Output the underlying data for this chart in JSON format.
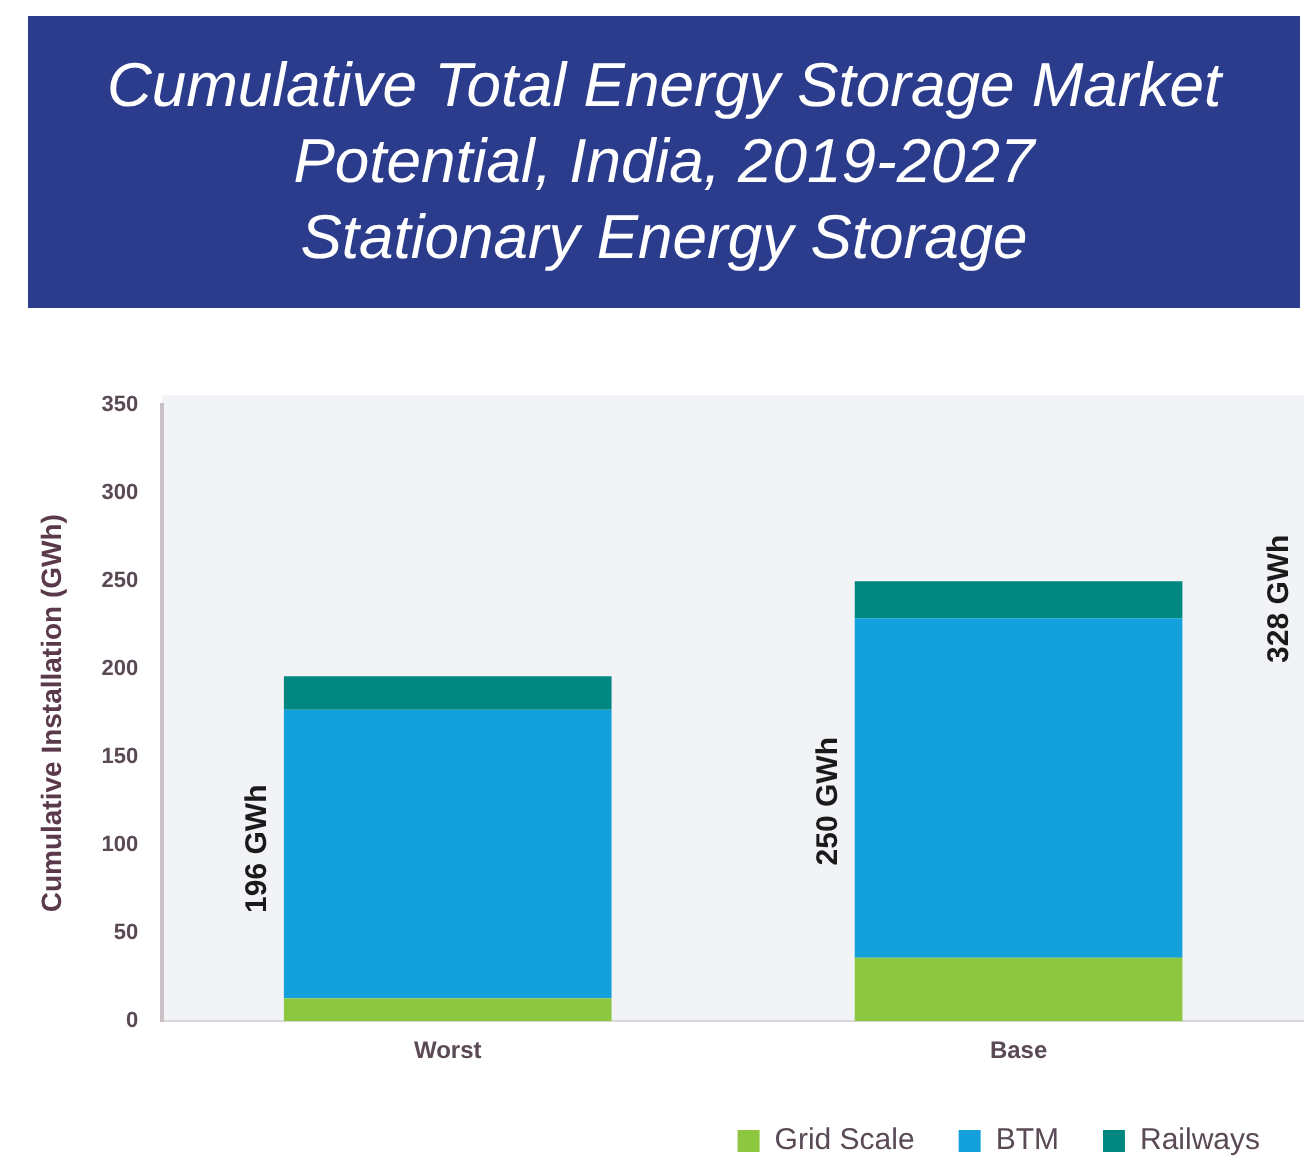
{
  "chart_data": {
    "type": "bar",
    "title": "Cumulative Total Energy Storage Market Potential, India, 2019-2027",
    "subtitle": "Stationary Energy Storage",
    "ylabel": "Cumulative Installation (GWh)",
    "categories": [
      "Worst",
      "Base"
    ],
    "stacked": true,
    "series": [
      {
        "name": "Grid Scale",
        "color": "#8dc63f",
        "values": [
          13,
          36
        ]
      },
      {
        "name": "BTM",
        "color": "#14a0db",
        "values": [
          164,
          193
        ]
      },
      {
        "name": "Railways",
        "color": "#00877f",
        "values": [
          19,
          21
        ]
      }
    ],
    "ylim": [
      0,
      350
    ],
    "yticks": [
      0,
      50,
      100,
      150,
      200,
      250,
      300,
      350
    ],
    "grid": false,
    "legend": "bottom",
    "totals": [
      "196 GWh",
      "250 GWh"
    ],
    "annotations": [
      "328 GWh"
    ]
  }
}
